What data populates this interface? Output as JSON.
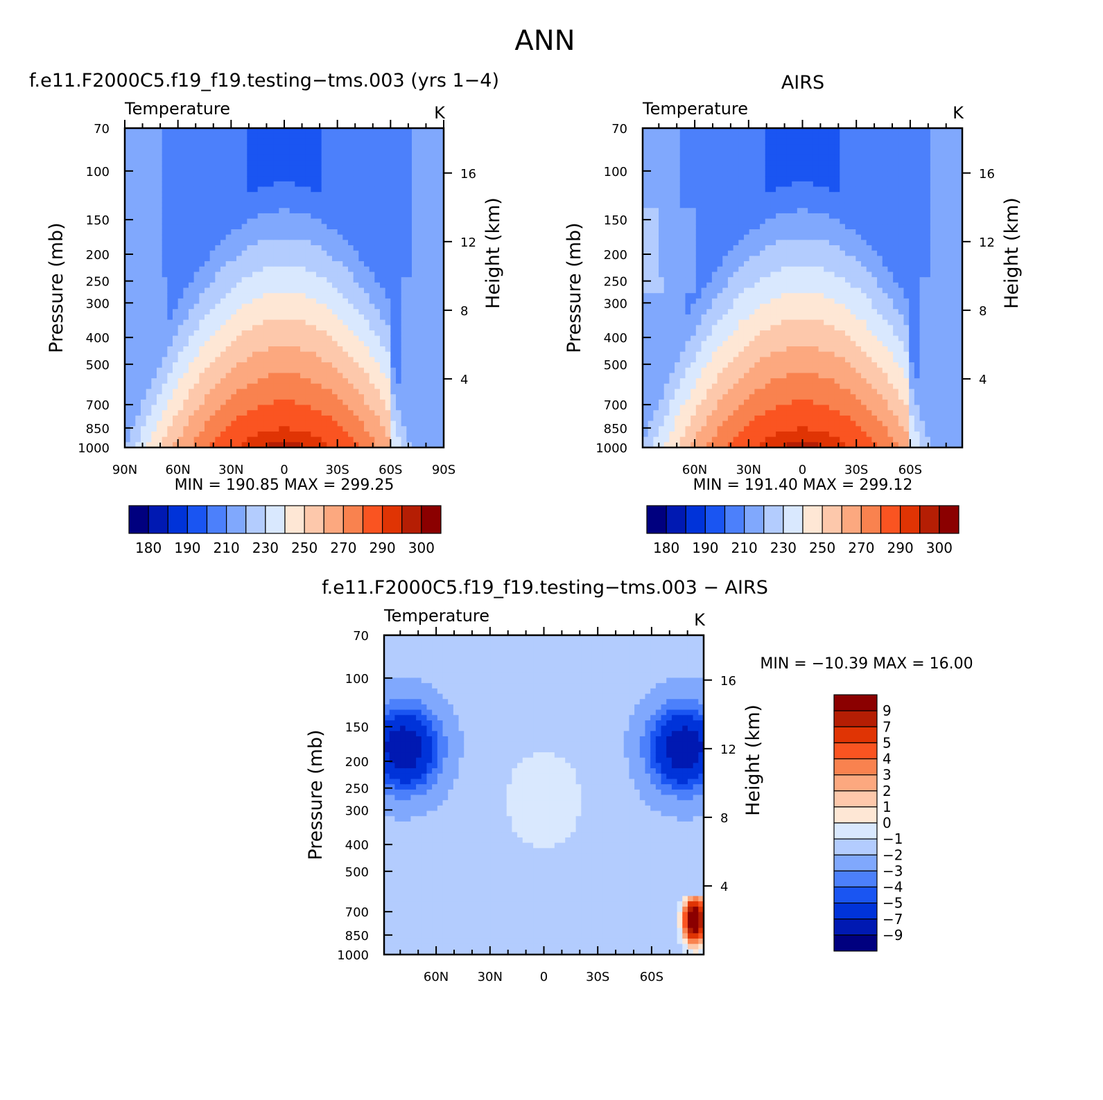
{
  "figure": {
    "title": "ANN"
  },
  "levels": {
    "pressure_ticks": [
      70,
      100,
      150,
      200,
      250,
      300,
      400,
      500,
      700,
      850,
      1000
    ],
    "height_ticks": [
      16,
      12,
      8,
      4
    ]
  },
  "chart_data": [
    {
      "id": "model",
      "type": "heatmap",
      "case_title": "f.e11.F2000C5.f19_f19.testing−tms.003 (yrs 1−4)",
      "subtitle": "Temperature",
      "units": "K",
      "ylabel": "Pressure (mb)",
      "y2label": "Height (km)",
      "x_ticks": [
        {
          "lat": 90,
          "label": "90N"
        },
        {
          "lat": 60,
          "label": "60N"
        },
        {
          "lat": 30,
          "label": "30N"
        },
        {
          "lat": 0,
          "label": "0"
        },
        {
          "lat": -30,
          "label": "30S"
        },
        {
          "lat": -60,
          "label": "60S"
        },
        {
          "lat": -90,
          "label": "90S"
        }
      ],
      "xlim": [
        90,
        -90
      ],
      "ylim": [
        1000,
        70
      ],
      "stats_text": "MIN = 190.85   MAX = 299.25",
      "min": 190.85,
      "max": 299.25,
      "colorbar": {
        "orientation": "horizontal",
        "colors": [
          "#00007f",
          "#0019b2",
          "#0033d9",
          "#1a55f2",
          "#4c80fb",
          "#80a8fd",
          "#b3ccfe",
          "#d9e8fe",
          "#fee7d5",
          "#fdc8ab",
          "#fca87f",
          "#f9824f",
          "#fa5421",
          "#e03404",
          "#b51e04",
          "#8b0000"
        ],
        "labels": [
          "180",
          "190",
          "210",
          "230",
          "250",
          "270",
          "290",
          "300"
        ]
      }
    },
    {
      "id": "obs",
      "type": "heatmap",
      "case_title": "AIRS",
      "subtitle": "Temperature",
      "units": "K",
      "ylabel": "Pressure (mb)",
      "y2label": "Height (km)",
      "x_ticks": [
        {
          "lat": 60,
          "label": "60N"
        },
        {
          "lat": 30,
          "label": "30N"
        },
        {
          "lat": 0,
          "label": "0"
        },
        {
          "lat": -30,
          "label": "30S"
        },
        {
          "lat": -60,
          "label": "60S"
        }
      ],
      "xlim": [
        89,
        -89
      ],
      "ylim": [
        1000,
        70
      ],
      "stats_text": "MIN = 191.40   MAX = 299.12",
      "min": 191.4,
      "max": 299.12,
      "colorbar": {
        "orientation": "horizontal",
        "colors": [
          "#00007f",
          "#0019b2",
          "#0033d9",
          "#1a55f2",
          "#4c80fb",
          "#80a8fd",
          "#b3ccfe",
          "#d9e8fe",
          "#fee7d5",
          "#fdc8ab",
          "#fca87f",
          "#f9824f",
          "#fa5421",
          "#e03404",
          "#b51e04",
          "#8b0000"
        ],
        "labels": [
          "180",
          "190",
          "210",
          "230",
          "250",
          "270",
          "290",
          "300"
        ]
      }
    },
    {
      "id": "diff",
      "type": "heatmap",
      "case_title": "f.e11.F2000C5.f19_f19.testing−tms.003 − AIRS",
      "subtitle": "Temperature",
      "units": "K",
      "ylabel": "Pressure (mb)",
      "y2label": "Height (km)",
      "x_ticks": [
        {
          "lat": 60,
          "label": "60N"
        },
        {
          "lat": 30,
          "label": "30N"
        },
        {
          "lat": 0,
          "label": "0"
        },
        {
          "lat": -30,
          "label": "30S"
        },
        {
          "lat": -60,
          "label": "60S"
        }
      ],
      "xlim": [
        89,
        -89
      ],
      "ylim": [
        1000,
        70
      ],
      "stats_text": "MIN = −10.39   MAX =   16.00",
      "min": -10.39,
      "max": 16.0,
      "colorbar": {
        "orientation": "vertical",
        "colors": [
          "#8b0000",
          "#b51e04",
          "#e03404",
          "#fa5421",
          "#f9824f",
          "#fca87f",
          "#fdc8ab",
          "#fee7d5",
          "#d9e8fe",
          "#b3ccfe",
          "#80a8fd",
          "#4c80fb",
          "#1a55f2",
          "#0033d9",
          "#0019b2",
          "#00007f"
        ],
        "labels": [
          "9",
          "7",
          "5",
          "4",
          "3",
          "2",
          "1",
          "0",
          "−1",
          "−2",
          "−3",
          "−4",
          "−5",
          "−7",
          "−9"
        ]
      }
    }
  ]
}
